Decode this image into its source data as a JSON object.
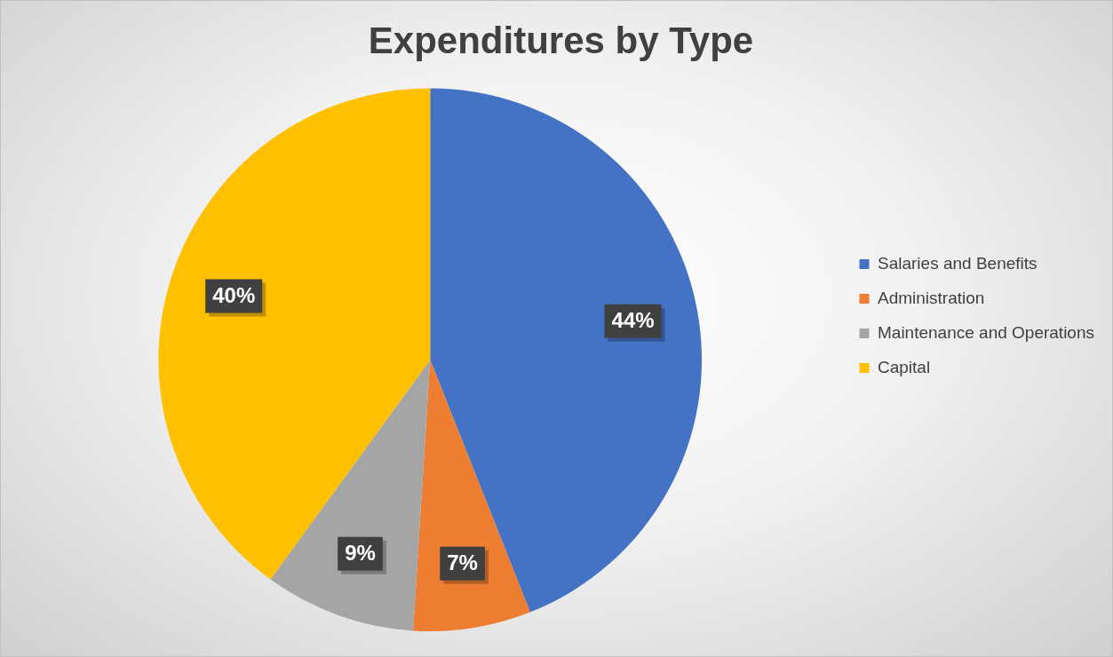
{
  "chart_data": {
    "type": "pie",
    "title": "Expenditures by Type",
    "categories": [
      "Salaries and Benefits",
      "Administration",
      "Maintenance and Operations",
      "Capital"
    ],
    "values": [
      44,
      7,
      9,
      40
    ],
    "value_labels": [
      "44%",
      "7%",
      "9%",
      "40%"
    ],
    "colors": [
      "#4472c4",
      "#ed7d31",
      "#a5a5a5",
      "#ffc000"
    ],
    "legend": "right"
  }
}
